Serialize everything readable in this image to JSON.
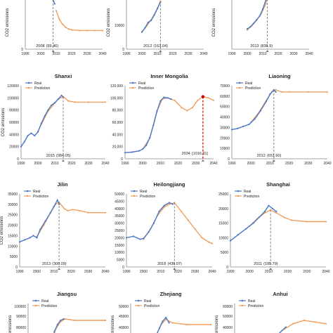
{
  "figure": {
    "legend": {
      "real": "Real",
      "prediction": "Prediction"
    },
    "colors": {
      "real": "#4a78c8",
      "prediction": "#f0a060",
      "peak_line": "#777777",
      "inner_peak": "#cc0000",
      "axis": "#888888",
      "text": "#222222"
    }
  },
  "chart_data": [
    {
      "type": "line",
      "title": "",
      "ylabel": "CO2 emissions",
      "y_ticks": [
        "0"
      ],
      "xlim": [
        1990,
        2040
      ],
      "ylim": [
        0,
        100
      ],
      "peak": {
        "year": 2008,
        "label": "2008",
        "value_label": "(99.46)"
      },
      "real": [
        [
          2008,
          92
        ],
        [
          2009,
          85
        ]
      ],
      "prediction": [
        [
          2010,
          72
        ],
        [
          2012,
          56
        ],
        [
          2014,
          47
        ],
        [
          2016,
          41
        ],
        [
          2018,
          38
        ],
        [
          2020,
          36
        ],
        [
          2025,
          35
        ],
        [
          2030,
          35
        ],
        [
          2035,
          35
        ],
        [
          2040,
          35
        ]
      ]
    },
    {
      "type": "line",
      "title": "",
      "ylabel": "CO2 emissions",
      "y_ticks": [
        "20000",
        "10000",
        "0"
      ],
      "xlim": [
        1990,
        2040
      ],
      "ylim": [
        0,
        25000
      ],
      "peak": {
        "year": 2012,
        "label": "2012",
        "value_label": "(163.04)"
      },
      "real": [
        [
          2000,
          8000
        ],
        [
          2002,
          10000
        ],
        [
          2004,
          12500
        ],
        [
          2006,
          13500
        ],
        [
          2008,
          16000
        ],
        [
          2010,
          19000
        ],
        [
          2012,
          22000
        ]
      ],
      "prediction": [
        [
          2000,
          8200
        ],
        [
          2003,
          10800
        ],
        [
          2006,
          13800
        ],
        [
          2009,
          17500
        ],
        [
          2012,
          22500
        ]
      ]
    },
    {
      "type": "line",
      "title": "",
      "ylabel": "CO2 emissions",
      "y_ticks": [],
      "xlim": [
        1990,
        2040
      ],
      "ylim": [
        0,
        100
      ],
      "peak": {
        "year": 2013,
        "label": "2013",
        "value_label": "(836.9)"
      },
      "real": [
        [
          2000,
          38
        ],
        [
          2002,
          42
        ],
        [
          2004,
          48
        ],
        [
          2006,
          55
        ],
        [
          2008,
          62
        ],
        [
          2010,
          75
        ],
        [
          2012,
          92
        ]
      ],
      "prediction": [
        [
          2000,
          36
        ],
        [
          2003,
          44
        ],
        [
          2006,
          54
        ],
        [
          2009,
          66
        ],
        [
          2012,
          85
        ],
        [
          2013,
          100
        ]
      ]
    },
    {
      "type": "line",
      "title": "Shanxi",
      "ylabel": "CO2 emissions",
      "y_ticks": [
        "120000",
        "100000",
        "80000",
        "60000",
        "40000",
        "20000",
        "0"
      ],
      "x_ticks": [
        "1990",
        "2000",
        "2010",
        "2020",
        "2030",
        "2040"
      ],
      "xlim": [
        1990,
        2040
      ],
      "ylim": [
        0,
        120000
      ],
      "peak": {
        "year": 2015,
        "label": "2015",
        "value_label": "(984.05)"
      },
      "real": [
        [
          1990,
          20000
        ],
        [
          1992,
          28000
        ],
        [
          1994,
          38000
        ],
        [
          1996,
          42000
        ],
        [
          1998,
          38000
        ],
        [
          2000,
          44000
        ],
        [
          2002,
          58000
        ],
        [
          2004,
          70000
        ],
        [
          2006,
          80000
        ],
        [
          2008,
          88000
        ],
        [
          2010,
          92000
        ],
        [
          2012,
          98000
        ],
        [
          2014,
          104000
        ],
        [
          2015,
          101000
        ]
      ],
      "prediction": [
        [
          2000,
          45000
        ],
        [
          2003,
          62000
        ],
        [
          2006,
          78000
        ],
        [
          2009,
          88000
        ],
        [
          2012,
          98000
        ],
        [
          2015,
          102000
        ],
        [
          2018,
          95000
        ],
        [
          2022,
          93000
        ],
        [
          2030,
          93000
        ],
        [
          2040,
          93000
        ]
      ]
    },
    {
      "type": "line",
      "title": "Inner Mongolia",
      "ylabel": "",
      "y_ticks": [
        "120,000",
        "100,000",
        "80,000",
        "60,000",
        "40,000",
        "20,000",
        "0"
      ],
      "x_ticks": [
        "1990",
        "2000",
        "2010",
        "2020",
        "2030",
        "2040"
      ],
      "xlim": [
        1990,
        2040
      ],
      "ylim": [
        0,
        120000
      ],
      "peak": {
        "year": 2034,
        "label": "2034",
        "value_label": "(1016.31)"
      },
      "real": [
        [
          1990,
          10000
        ],
        [
          1994,
          11000
        ],
        [
          1998,
          13000
        ],
        [
          2000,
          16000
        ],
        [
          2002,
          22000
        ],
        [
          2004,
          35000
        ],
        [
          2006,
          55000
        ],
        [
          2008,
          78000
        ],
        [
          2010,
          95000
        ],
        [
          2012,
          101000
        ],
        [
          2014,
          100000
        ],
        [
          2016,
          98000
        ]
      ],
      "prediction": [
        [
          2000,
          16000
        ],
        [
          2004,
          34000
        ],
        [
          2008,
          78000
        ],
        [
          2011,
          98000
        ],
        [
          2014,
          100000
        ],
        [
          2018,
          96000
        ],
        [
          2022,
          84000
        ],
        [
          2025,
          79000
        ],
        [
          2028,
          84000
        ],
        [
          2031,
          96000
        ],
        [
          2034,
          102000
        ],
        [
          2037,
          100000
        ],
        [
          2040,
          96000
        ]
      ]
    },
    {
      "type": "line",
      "title": "Liaoning",
      "ylabel": "",
      "y_ticks": [
        "70000",
        "60000",
        "50000",
        "40000",
        "30000",
        "20000",
        "10000",
        "0"
      ],
      "x_ticks": [
        "1990",
        "2000",
        "2010",
        "2020",
        "2030",
        "2040"
      ],
      "xlim": [
        1990,
        2040
      ],
      "ylim": [
        0,
        70000
      ],
      "peak": {
        "year": 2012,
        "label": "2012",
        "value_label": "(651.60)"
      },
      "real": [
        [
          1990,
          28000
        ],
        [
          1993,
          29000
        ],
        [
          1996,
          31000
        ],
        [
          1999,
          33000
        ],
        [
          2002,
          38000
        ],
        [
          2005,
          46000
        ],
        [
          2008,
          55000
        ],
        [
          2010,
          62000
        ],
        [
          2012,
          66000
        ],
        [
          2013,
          64000
        ]
      ],
      "prediction": [
        [
          2000,
          35000
        ],
        [
          2004,
          44000
        ],
        [
          2008,
          56000
        ],
        [
          2011,
          64000
        ],
        [
          2013,
          66000
        ],
        [
          2016,
          64000
        ],
        [
          2020,
          64000
        ],
        [
          2030,
          64000
        ],
        [
          2040,
          64000
        ]
      ]
    },
    {
      "type": "line",
      "title": "Jilin",
      "ylabel": "CO2 emissions",
      "y_ticks": [
        "35000",
        "30000",
        "25000",
        "20000",
        "15000",
        "10000",
        "5000",
        "0"
      ],
      "x_ticks": [
        "1990",
        "2000",
        "2010",
        "2020",
        "2030",
        "2040"
      ],
      "xlim": [
        1990,
        2040
      ],
      "ylim": [
        0,
        35000
      ],
      "peak": {
        "year": 2013,
        "label": "2013",
        "value_label": "(300.09)"
      },
      "real": [
        [
          1990,
          12000
        ],
        [
          1993,
          13000
        ],
        [
          1996,
          14000
        ],
        [
          1998,
          15000
        ],
        [
          2000,
          14000
        ],
        [
          2002,
          18000
        ],
        [
          2005,
          22000
        ],
        [
          2008,
          26000
        ],
        [
          2010,
          29000
        ],
        [
          2012,
          32000
        ],
        [
          2013,
          30000
        ]
      ],
      "prediction": [
        [
          2000,
          14500
        ],
        [
          2004,
          20000
        ],
        [
          2008,
          26000
        ],
        [
          2011,
          30000
        ],
        [
          2013,
          31000
        ],
        [
          2016,
          28000
        ],
        [
          2018,
          27000
        ],
        [
          2021,
          27500
        ],
        [
          2025,
          27000
        ],
        [
          2030,
          26000
        ],
        [
          2040,
          26000
        ]
      ]
    },
    {
      "type": "line",
      "title": "Heilongjiang",
      "ylabel": "",
      "y_ticks": [
        "50000",
        "45000",
        "40000",
        "35000",
        "30000",
        "25000",
        "20000",
        "15000",
        "10000",
        "5000",
        "0"
      ],
      "x_ticks": [
        "1990",
        "2000",
        "2010",
        "2020",
        "2030",
        "2040"
      ],
      "xlim": [
        1990,
        2040
      ],
      "ylim": [
        0,
        50000
      ],
      "peak": {
        "year": 2018,
        "label": "2018",
        "value_label": "(436.07)"
      },
      "real": [
        [
          1990,
          20000
        ],
        [
          1994,
          21000
        ],
        [
          1998,
          19000
        ],
        [
          2000,
          19500
        ],
        [
          2003,
          24000
        ],
        [
          2006,
          30000
        ],
        [
          2009,
          38000
        ],
        [
          2012,
          42000
        ],
        [
          2015,
          44000
        ],
        [
          2017,
          43000
        ]
      ],
      "prediction": [
        [
          2000,
          19000
        ],
        [
          2004,
          26000
        ],
        [
          2008,
          35000
        ],
        [
          2012,
          41000
        ],
        [
          2015,
          43000
        ],
        [
          2018,
          44000
        ],
        [
          2022,
          38000
        ],
        [
          2026,
          32000
        ],
        [
          2030,
          26000
        ],
        [
          2034,
          20000
        ],
        [
          2038,
          17000
        ],
        [
          2040,
          16000
        ]
      ]
    },
    {
      "type": "line",
      "title": "Shanghai",
      "ylabel": "",
      "y_ticks": [
        "25000",
        "20000",
        "15000",
        "10000",
        "5000",
        "0"
      ],
      "x_ticks": [
        "1990",
        "2000",
        "2010",
        "2020",
        "2030",
        "2040"
      ],
      "xlim": [
        1990,
        2040
      ],
      "ylim": [
        0,
        25000
      ],
      "peak": {
        "year": 2011,
        "label": "2011",
        "value_label": "(195.79)"
      },
      "real": [
        [
          1990,
          9000
        ],
        [
          1994,
          11000
        ],
        [
          1998,
          13000
        ],
        [
          2002,
          15000
        ],
        [
          2005,
          17000
        ],
        [
          2008,
          19000
        ],
        [
          2010,
          21000
        ],
        [
          2012,
          20000
        ],
        [
          2014,
          19000
        ]
      ],
      "prediction": [
        [
          2000,
          14000
        ],
        [
          2004,
          16500
        ],
        [
          2008,
          18500
        ],
        [
          2011,
          19500
        ],
        [
          2014,
          18500
        ],
        [
          2018,
          17000
        ],
        [
          2022,
          16000
        ],
        [
          2030,
          15500
        ],
        [
          2040,
          15500
        ]
      ]
    },
    {
      "type": "line",
      "title": "Jiangsu",
      "ylabel": "emissions",
      "y_ticks": [
        "100000",
        "90000",
        "80000"
      ],
      "xlim": [
        1990,
        2040
      ],
      "ylim": [
        70000,
        100000
      ],
      "real": [
        [
          2005,
          72000
        ],
        [
          2007,
          80000
        ],
        [
          2009,
          85000
        ],
        [
          2011,
          88000
        ],
        [
          2013,
          89000
        ]
      ],
      "prediction": [
        [
          2005,
          73000
        ],
        [
          2008,
          82000
        ],
        [
          2011,
          87000
        ],
        [
          2014,
          89000
        ],
        [
          2020,
          88000
        ],
        [
          2030,
          88000
        ],
        [
          2040,
          88000
        ]
      ]
    },
    {
      "type": "line",
      "title": "Zhejiang",
      "ylabel": "emissions",
      "y_ticks": [
        "50000",
        "45000",
        "40000"
      ],
      "xlim": [
        1990,
        2040
      ],
      "ylim": [
        38000,
        50000
      ],
      "real": [
        [
          2005,
          40000
        ],
        [
          2008,
          43000
        ],
        [
          2010,
          45000
        ],
        [
          2012,
          46000
        ],
        [
          2014,
          44500
        ]
      ],
      "prediction": [
        [
          2005,
          40000
        ],
        [
          2009,
          44000
        ],
        [
          2012,
          45500
        ],
        [
          2016,
          44500
        ],
        [
          2025,
          44000
        ],
        [
          2040,
          44000
        ]
      ]
    },
    {
      "type": "line",
      "title": "Anhui",
      "ylabel": "emissions",
      "y_ticks": [
        "60000",
        "50000",
        "40000"
      ],
      "xlim": [
        1990,
        2040
      ],
      "ylim": [
        35000,
        60000
      ],
      "real": [
        [
          2010,
          38000
        ],
        [
          2014,
          42000
        ],
        [
          2018,
          46000
        ]
      ],
      "prediction": [
        [
          2010,
          37500
        ],
        [
          2016,
          44000
        ],
        [
          2022,
          48000
        ],
        [
          2028,
          50000
        ],
        [
          2034,
          49000
        ],
        [
          2040,
          48000
        ]
      ]
    }
  ]
}
